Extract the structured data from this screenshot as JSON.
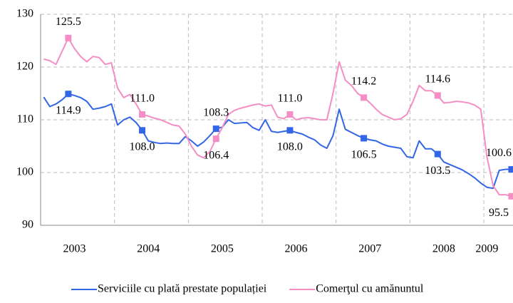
{
  "chart_data": {
    "type": "line",
    "categories": [
      null,
      null,
      null,
      null,
      null,
      "2003",
      null,
      null,
      null,
      null,
      null,
      null,
      null,
      null,
      null,
      null,
      null,
      "2004",
      null,
      null,
      null,
      null,
      null,
      null,
      null,
      null,
      null,
      null,
      null,
      "2005",
      null,
      null,
      null,
      null,
      null,
      null,
      null,
      null,
      null,
      null,
      null,
      "2006",
      null,
      null,
      null,
      null,
      null,
      null,
      null,
      null,
      null,
      null,
      null,
      "2007",
      null,
      null,
      null,
      null,
      null,
      null,
      null,
      null,
      null,
      null,
      null,
      "2008",
      null,
      null,
      null,
      null,
      null,
      null,
      "2009",
      null,
      null,
      null,
      null
    ],
    "series": [
      {
        "name": "Serviciile cu plată prestate populației",
        "color": "#3366e6",
        "values": [
          114.3,
          112.5,
          113,
          113.8,
          114.9,
          114.6,
          114.2,
          113.5,
          112,
          112.2,
          112.5,
          113,
          109,
          110,
          110.5,
          109.5,
          108,
          106,
          105.7,
          105.5,
          105.6,
          105.5,
          105.5,
          106.8,
          106,
          105,
          105.8,
          107,
          108.3,
          108.6,
          110,
          109.3,
          109.4,
          109.5,
          108.5,
          108,
          110,
          107.8,
          107.6,
          107.8,
          108,
          107.6,
          107.3,
          106.7,
          106.2,
          105.2,
          104.6,
          107,
          112,
          108.2,
          107.6,
          107,
          106.5,
          106.2,
          106,
          105.4,
          105,
          104.8,
          104.6,
          103,
          102.8,
          106,
          104.5,
          104.5,
          103.5,
          102,
          101.5,
          101,
          100.5,
          99.8,
          99,
          98,
          97.2,
          97,
          100.4,
          100.6,
          100.6
        ],
        "value_labels": [
          null,
          null,
          null,
          null,
          "114.9",
          null,
          null,
          null,
          null,
          null,
          null,
          null,
          null,
          null,
          null,
          null,
          "108.0",
          null,
          null,
          null,
          null,
          null,
          null,
          null,
          null,
          null,
          null,
          null,
          "108.3",
          null,
          null,
          null,
          null,
          null,
          null,
          null,
          null,
          null,
          null,
          null,
          "108.0",
          null,
          null,
          null,
          null,
          null,
          null,
          null,
          null,
          null,
          null,
          null,
          "106.5",
          null,
          null,
          null,
          null,
          null,
          null,
          null,
          null,
          null,
          null,
          null,
          "103.5",
          null,
          null,
          null,
          null,
          null,
          null,
          null,
          null,
          null,
          null,
          null,
          "100.6"
        ]
      },
      {
        "name": "Comerţul cu amănuntul",
        "color": "#f48ec4",
        "values": [
          121.5,
          121.2,
          120.5,
          123,
          125.5,
          123.5,
          122,
          121,
          122,
          121.8,
          120.5,
          120.8,
          116,
          114.2,
          114.8,
          113,
          111,
          110.7,
          110.3,
          110,
          109.5,
          109,
          108.8,
          107.3,
          105,
          103.3,
          102.8,
          104,
          106.4,
          108.5,
          111,
          111.8,
          112.2,
          112.5,
          112.8,
          113,
          112.6,
          112.8,
          110.5,
          110.2,
          111,
          110,
          110.3,
          110.4,
          110.2,
          110,
          110,
          115,
          121,
          117.5,
          116.5,
          115,
          114.2,
          113.2,
          112,
          111,
          110.5,
          110,
          110.2,
          111,
          113.5,
          116.5,
          115.5,
          115.5,
          114.6,
          113.2,
          113.3,
          113.5,
          113.4,
          113.2,
          112.8,
          112,
          103,
          97.5,
          95.8,
          95.8,
          95.5
        ],
        "value_labels": [
          null,
          null,
          null,
          null,
          "125.5",
          null,
          null,
          null,
          null,
          null,
          null,
          null,
          null,
          null,
          null,
          null,
          "111.0",
          null,
          null,
          null,
          null,
          null,
          null,
          null,
          null,
          null,
          null,
          null,
          "106.4",
          null,
          null,
          null,
          null,
          null,
          null,
          null,
          null,
          null,
          null,
          null,
          "111.0",
          null,
          null,
          null,
          null,
          null,
          null,
          null,
          null,
          null,
          null,
          null,
          "114.2",
          null,
          null,
          null,
          null,
          null,
          null,
          null,
          null,
          null,
          null,
          null,
          "114.6",
          null,
          null,
          null,
          null,
          null,
          null,
          null,
          null,
          null,
          null,
          null,
          "95.5"
        ]
      }
    ],
    "ylim": [
      90,
      130
    ],
    "yticks": [
      90,
      100,
      110,
      120,
      130
    ],
    "grid": true,
    "legend": "bottom"
  }
}
